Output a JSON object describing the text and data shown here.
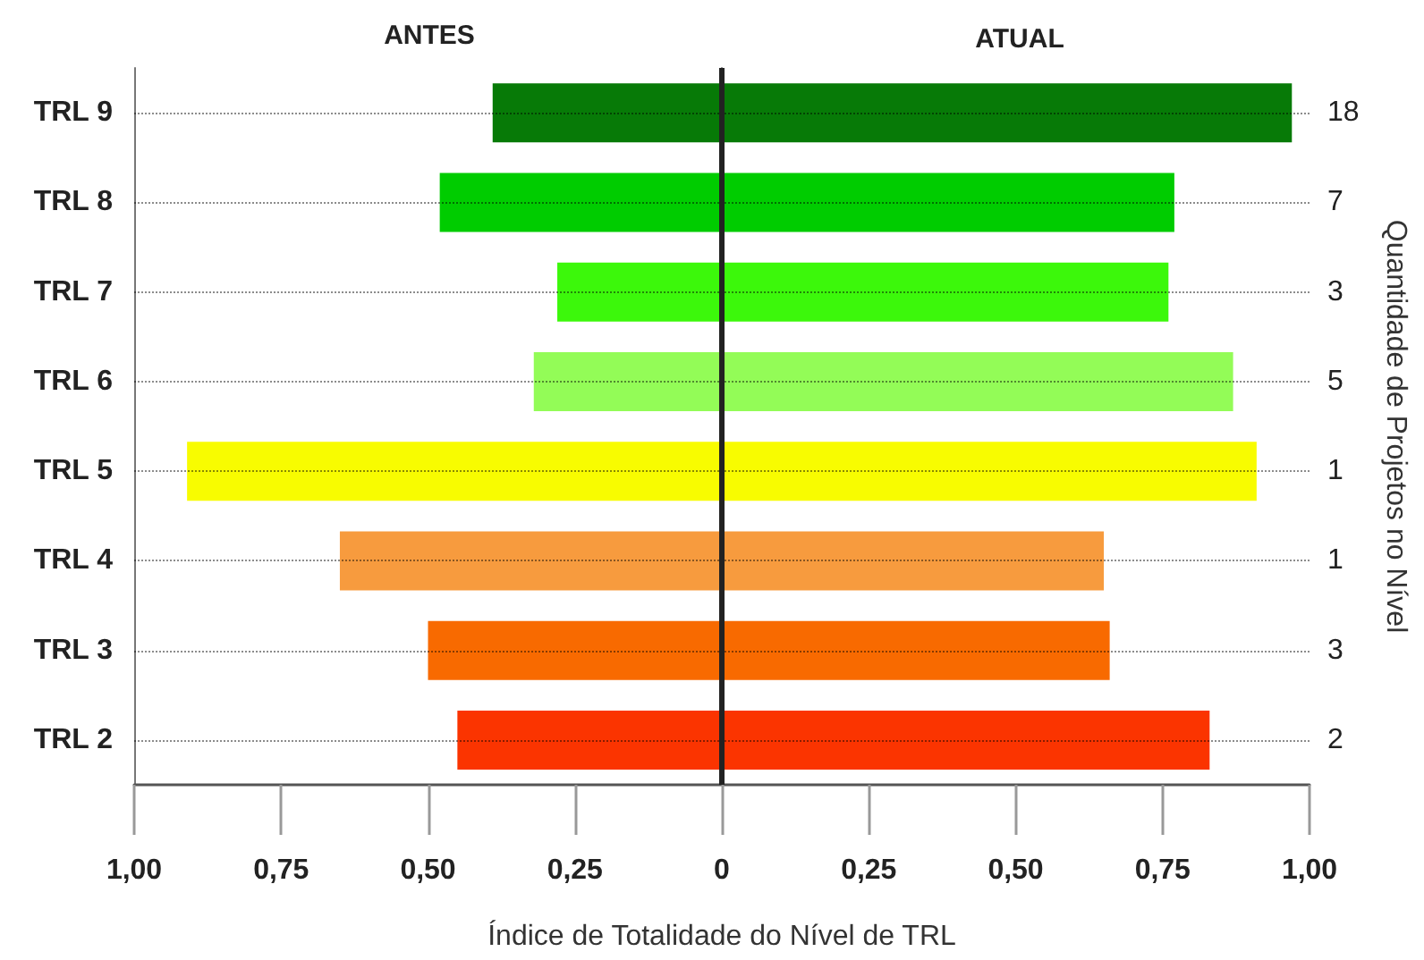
{
  "chart_data": {
    "type": "bar",
    "orientation": "horizontal",
    "stacked": true,
    "categories": [
      "TRL 9",
      "TRL 8",
      "TRL 7",
      "TRL 6",
      "TRL 5",
      "TRL 4",
      "TRL 3",
      "TRL 2"
    ],
    "y2_categories": [
      "18",
      "7",
      "3",
      "5",
      "1",
      "1",
      "3",
      "2"
    ],
    "series": [
      {
        "name": "ANTES",
        "colors": [
          "#077a07",
          "#00cc00",
          "#3cf80b",
          "#93fc57",
          "#f8fc00",
          "#f79b3e",
          "#f86a00",
          "#fb3400"
        ],
        "values": [
          -0.39,
          -0.48,
          -0.28,
          -0.32,
          -0.91,
          -0.65,
          -0.5,
          -0.45
        ]
      },
      {
        "name": "ATUAL",
        "colors": [
          "#077a07",
          "#00cc00",
          "#3cf80b",
          "#93fc57",
          "#f8fc00",
          "#f79b3e",
          "#f86a00",
          "#fb3400"
        ],
        "values": [
          0.97,
          0.77,
          0.76,
          0.87,
          0.91,
          0.65,
          0.66,
          0.83
        ]
      }
    ],
    "xlim": [
      -1,
      1
    ],
    "xticks": [
      {
        "value": -1,
        "label": "1,00"
      },
      {
        "value": -0.75,
        "label": "0,75"
      },
      {
        "value": -0.5,
        "label": "0,50"
      },
      {
        "value": -0.25,
        "label": "0,25"
      },
      {
        "value": 0,
        "label": "0"
      },
      {
        "value": 0.25,
        "label": "0,25"
      },
      {
        "value": 0.5,
        "label": "0,50"
      },
      {
        "value": 0.75,
        "label": "0,75"
      },
      {
        "value": 1,
        "label": "1,00"
      }
    ],
    "xlabel": "Índice de Totalidade do Nível de TRL",
    "y2label": "Quantidade de Projetos no Nível",
    "grid": "y",
    "ref_lines": [
      {
        "axis": "x",
        "value": 0,
        "color": "#222222"
      }
    ]
  }
}
